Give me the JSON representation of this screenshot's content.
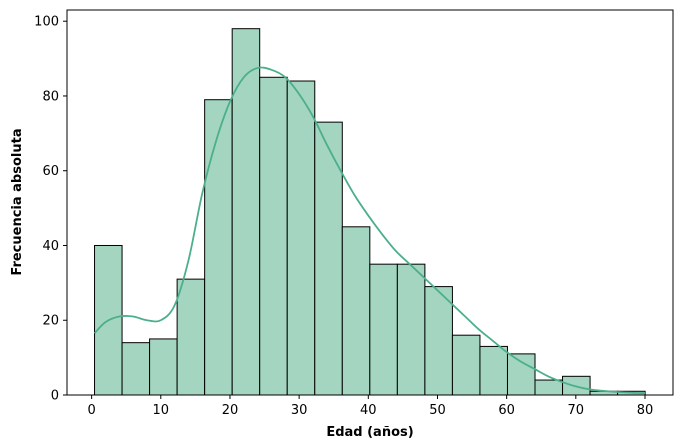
{
  "chart_data": {
    "type": "bar",
    "subtype": "histogram-with-kde",
    "xlabel": "Edad (años)",
    "ylabel": "Frecuencia absoluta",
    "xlim": [
      -3.56,
      84.05
    ],
    "ylim": [
      0,
      103
    ],
    "xticks": [
      0,
      10,
      20,
      30,
      40,
      50,
      60,
      70,
      80
    ],
    "yticks": [
      0,
      20,
      40,
      60,
      80,
      100
    ],
    "grid": false,
    "bar_color": "#a3d5c1",
    "bar_edge_color": "#000000",
    "kde_color": "#4caf8c",
    "bins": [
      {
        "start": 0.42,
        "end": 4.4,
        "value": 40
      },
      {
        "start": 4.4,
        "end": 8.38,
        "value": 14
      },
      {
        "start": 8.38,
        "end": 12.36,
        "value": 15
      },
      {
        "start": 12.36,
        "end": 16.34,
        "value": 31
      },
      {
        "start": 16.34,
        "end": 20.32,
        "value": 79
      },
      {
        "start": 20.32,
        "end": 24.3,
        "value": 98
      },
      {
        "start": 24.3,
        "end": 28.28,
        "value": 85
      },
      {
        "start": 28.28,
        "end": 32.26,
        "value": 84
      },
      {
        "start": 32.26,
        "end": 36.24,
        "value": 73
      },
      {
        "start": 36.24,
        "end": 40.22,
        "value": 45
      },
      {
        "start": 40.22,
        "end": 44.2,
        "value": 35
      },
      {
        "start": 44.2,
        "end": 48.18,
        "value": 35
      },
      {
        "start": 48.18,
        "end": 52.16,
        "value": 29
      },
      {
        "start": 52.16,
        "end": 56.14,
        "value": 16
      },
      {
        "start": 56.14,
        "end": 60.12,
        "value": 13
      },
      {
        "start": 60.12,
        "end": 64.1,
        "value": 11
      },
      {
        "start": 64.1,
        "end": 68.08,
        "value": 4
      },
      {
        "start": 68.08,
        "end": 72.06,
        "value": 5
      },
      {
        "start": 72.06,
        "end": 76.04,
        "value": 1
      },
      {
        "start": 76.04,
        "end": 80.02,
        "value": 1
      }
    ],
    "kde": {
      "x": [
        0.42,
        2,
        4,
        6,
        8,
        10,
        12,
        14,
        16,
        18,
        20,
        22,
        24,
        26,
        28,
        30,
        32,
        34,
        36,
        38,
        40,
        42,
        44,
        46,
        48,
        50,
        52,
        54,
        56,
        58,
        60,
        62,
        64,
        66,
        68,
        70,
        72,
        74,
        76,
        78,
        80
      ],
      "y": [
        16.5,
        19.5,
        21,
        21,
        20,
        20,
        24,
        36,
        54,
        68,
        78.5,
        85,
        87.5,
        87,
        85,
        80.5,
        74.5,
        67,
        60,
        53.5,
        48,
        43,
        38.5,
        35,
        31.5,
        28,
        24.5,
        21,
        17.5,
        14.5,
        11.5,
        9,
        7,
        5,
        3.5,
        2.3,
        1.5,
        1.1,
        0.8,
        0.6,
        0.5
      ]
    }
  }
}
